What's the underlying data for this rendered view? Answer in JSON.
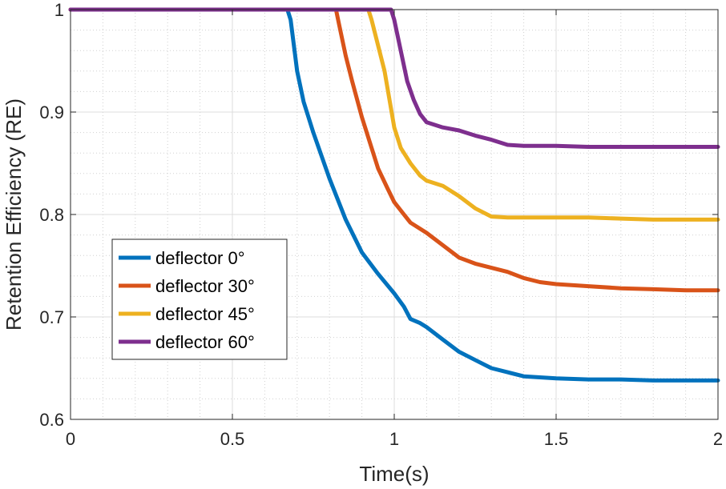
{
  "chart_data": {
    "type": "line",
    "title": "",
    "xlabel": "Time(s)",
    "ylabel": "Retention Efficiency (RE)",
    "xlim": [
      0,
      2
    ],
    "ylim": [
      0.6,
      1.0
    ],
    "xticks": [
      0,
      0.5,
      1,
      1.5,
      2
    ],
    "xtick_labels": [
      "0",
      "0.5",
      "1",
      "1.5",
      "2"
    ],
    "yticks": [
      0.6,
      0.7,
      0.8,
      0.9,
      1.0
    ],
    "ytick_labels": [
      "0.6",
      "0.7",
      "0.8",
      "0.9",
      "1"
    ],
    "grid": true,
    "minor_grid": true,
    "legend_position": "center-left",
    "series": [
      {
        "name": "deflector 0°",
        "color": "#0072BD",
        "x": [
          0,
          0.67,
          0.68,
          0.7,
          0.72,
          0.75,
          0.8,
          0.85,
          0.9,
          0.95,
          1.0,
          1.03,
          1.05,
          1.08,
          1.1,
          1.15,
          1.2,
          1.25,
          1.3,
          1.35,
          1.4,
          1.5,
          1.6,
          1.7,
          1.8,
          1.9,
          2.0
        ],
        "y": [
          1.0,
          1.0,
          0.99,
          0.94,
          0.91,
          0.88,
          0.835,
          0.795,
          0.763,
          0.742,
          0.723,
          0.71,
          0.698,
          0.694,
          0.69,
          0.678,
          0.666,
          0.658,
          0.65,
          0.646,
          0.642,
          0.64,
          0.639,
          0.639,
          0.638,
          0.638,
          0.638
        ]
      },
      {
        "name": "deflector 30°",
        "color": "#D95319",
        "x": [
          0,
          0.82,
          0.83,
          0.85,
          0.87,
          0.9,
          0.93,
          0.95,
          0.98,
          1.0,
          1.03,
          1.05,
          1.1,
          1.15,
          1.2,
          1.25,
          1.3,
          1.35,
          1.4,
          1.45,
          1.5,
          1.6,
          1.7,
          1.8,
          1.9,
          2.0
        ],
        "y": [
          1.0,
          1.0,
          0.985,
          0.955,
          0.93,
          0.895,
          0.865,
          0.845,
          0.825,
          0.812,
          0.8,
          0.792,
          0.782,
          0.77,
          0.758,
          0.752,
          0.748,
          0.744,
          0.738,
          0.734,
          0.732,
          0.73,
          0.728,
          0.727,
          0.726,
          0.726
        ]
      },
      {
        "name": "deflector 45°",
        "color": "#EDB120",
        "x": [
          0,
          0.92,
          0.93,
          0.95,
          0.97,
          1.0,
          1.02,
          1.05,
          1.08,
          1.1,
          1.15,
          1.2,
          1.25,
          1.3,
          1.35,
          1.4,
          1.5,
          1.6,
          1.7,
          1.8,
          1.9,
          2.0
        ],
        "y": [
          1.0,
          1.0,
          0.99,
          0.965,
          0.94,
          0.885,
          0.865,
          0.85,
          0.838,
          0.833,
          0.828,
          0.818,
          0.806,
          0.798,
          0.797,
          0.797,
          0.797,
          0.797,
          0.796,
          0.795,
          0.795,
          0.795
        ]
      },
      {
        "name": "deflector 60°",
        "color": "#7E2F8E",
        "x": [
          0,
          0.99,
          1.0,
          1.02,
          1.04,
          1.06,
          1.08,
          1.1,
          1.15,
          1.2,
          1.25,
          1.3,
          1.35,
          1.4,
          1.5,
          1.6,
          1.7,
          1.8,
          1.9,
          2.0
        ],
        "y": [
          1.0,
          1.0,
          0.99,
          0.96,
          0.93,
          0.912,
          0.898,
          0.89,
          0.885,
          0.882,
          0.877,
          0.873,
          0.868,
          0.867,
          0.867,
          0.866,
          0.866,
          0.866,
          0.866,
          0.866
        ]
      }
    ]
  }
}
